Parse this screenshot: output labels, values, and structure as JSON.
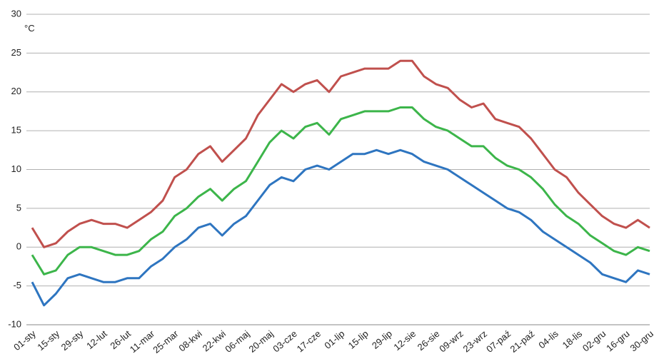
{
  "chart_data": {
    "type": "line",
    "unit": "°C",
    "categories": [
      "01-sty",
      null,
      "15-sty",
      null,
      "29-sty",
      null,
      "12-lut",
      null,
      "26-lut",
      null,
      "11-mar",
      null,
      "25-mar",
      null,
      "08-kwi",
      null,
      "22-kwi",
      null,
      "06-maj",
      null,
      "20-maj",
      null,
      "03-cze",
      null,
      "17-cze",
      null,
      "01-lip",
      null,
      "15-lip",
      null,
      "29-lip",
      null,
      "12-sie",
      null,
      "26-sie",
      null,
      "09-wrz",
      null,
      "23-wrz",
      null,
      "07-paź",
      null,
      "21-paź",
      null,
      "04-lis",
      null,
      "18-lis",
      null,
      "02-gru",
      null,
      "16-gru",
      null,
      "30-gru"
    ],
    "series": [
      {
        "color": "#c0504d",
        "values": [
          2.5,
          0,
          0.5,
          2,
          3,
          3.5,
          3,
          3,
          2.5,
          3.5,
          4.5,
          6,
          9,
          10,
          12,
          13,
          11,
          12.5,
          14,
          17,
          19,
          21,
          20,
          21,
          21.5,
          20,
          22,
          22.5,
          23,
          23,
          23,
          24,
          24,
          22,
          21,
          20.5,
          19,
          18,
          18.5,
          16.5,
          16,
          15.5,
          14,
          12,
          10,
          9,
          7,
          5.5,
          4,
          3,
          2.5,
          3.5,
          2.5
        ]
      },
      {
        "color": "#3cb54a",
        "values": [
          -1,
          -3.5,
          -3,
          -1,
          0,
          0,
          -0.5,
          -1,
          -1,
          -0.5,
          1,
          2,
          4,
          5,
          6.5,
          7.5,
          6,
          7.5,
          8.5,
          11,
          13.5,
          15,
          14,
          15.5,
          16,
          14.5,
          16.5,
          17,
          17.5,
          17.5,
          17.5,
          18,
          18,
          16.5,
          15.5,
          15,
          14,
          13,
          13,
          11.5,
          10.5,
          10,
          9,
          7.5,
          5.5,
          4,
          3,
          1.5,
          0.5,
          -0.5,
          -1,
          0,
          -0.5
        ]
      },
      {
        "color": "#2e75c0",
        "values": [
          -4.5,
          -7.5,
          -6,
          -4,
          -3.5,
          -4,
          -4.5,
          -4.5,
          -4,
          -4,
          -2.5,
          -1.5,
          0,
          1,
          2.5,
          3,
          1.5,
          3,
          4,
          6,
          8,
          9,
          8.5,
          10,
          10.5,
          10,
          11,
          12,
          12,
          12.5,
          12,
          12.5,
          12,
          11,
          10.5,
          10,
          9,
          8,
          7,
          6,
          5,
          4.5,
          3.5,
          2,
          1,
          0,
          -1,
          -2,
          -3.5,
          -4,
          -4.5,
          -3,
          -3.5
        ]
      }
    ],
    "ylim": [
      -10,
      30
    ],
    "yticks": [
      -10,
      -5,
      0,
      5,
      10,
      15,
      20,
      25,
      30
    ],
    "grid": true
  }
}
